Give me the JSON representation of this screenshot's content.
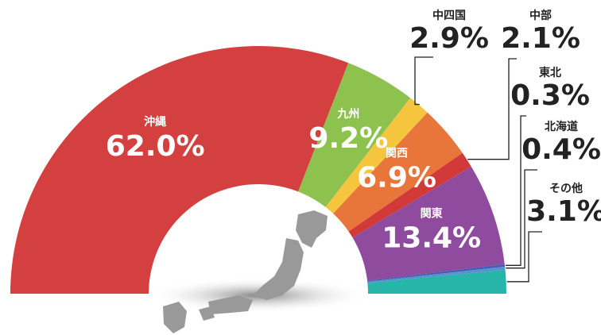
{
  "chart_data": {
    "type": "pie",
    "categories": [
      "沖縄",
      "九州",
      "中四国",
      "関西",
      "中部",
      "関東",
      "東北",
      "北海道",
      "その他"
    ],
    "values": [
      62.0,
      9.2,
      2.9,
      6.9,
      2.1,
      13.4,
      0.3,
      0.4,
      3.1
    ],
    "value_labels": [
      "62.0%",
      "9.2%",
      "2.9%",
      "6.9%",
      "2.1%",
      "13.4%",
      "0.3%",
      "0.4%",
      "3.1%"
    ],
    "colors": [
      "#d43f3f",
      "#8dc24f",
      "#f4c53d",
      "#e8763a",
      "#d23a3a",
      "#8f4c9f",
      "#3b5fb2",
      "#5d8fd0",
      "#27b4a9"
    ]
  }
}
